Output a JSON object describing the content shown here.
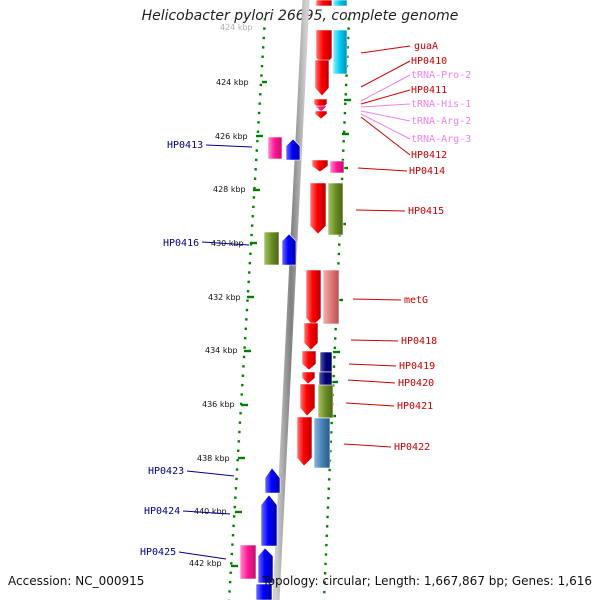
{
  "title": "Helicobacter pylori 26695, complete genome",
  "footer": {
    "accession": "Accession: NC_000915",
    "summary": "Topology: circular; Length: 1,667,867 bp; Genes: 1,616"
  },
  "tick_labels": [
    "424 kbp",
    "424 kbp",
    "426 kbp",
    "428 kbp",
    "430 kbp",
    "432 kbp",
    "434 kbp",
    "436 kbp",
    "438 kbp",
    "440 kbp",
    "442 kbp"
  ],
  "gene_labels": {
    "right": [
      "guaA",
      "HP0410",
      "tRNA-Pro-2",
      "HP0411",
      "tRNA-His-1",
      "tRNA-Arg-2",
      "tRNA-Arg-3",
      "HP0412",
      "HP0414",
      "HP0415",
      "metG",
      "HP0418",
      "HP0419",
      "HP0420",
      "HP0421",
      "HP0422"
    ],
    "left": [
      "HP0413",
      "HP0416",
      "HP0423",
      "HP0424",
      "HP0425"
    ]
  },
  "colors": {
    "forward_strand": "#ff0000",
    "reverse_strand": "#0000ff",
    "trna": "#ff69b4",
    "trna_label": "#ee82ee",
    "coding_label": "#cc0000",
    "left_label": "#00008b",
    "backbone": "#8c8c8c",
    "dotted_axis": "#008000"
  }
}
